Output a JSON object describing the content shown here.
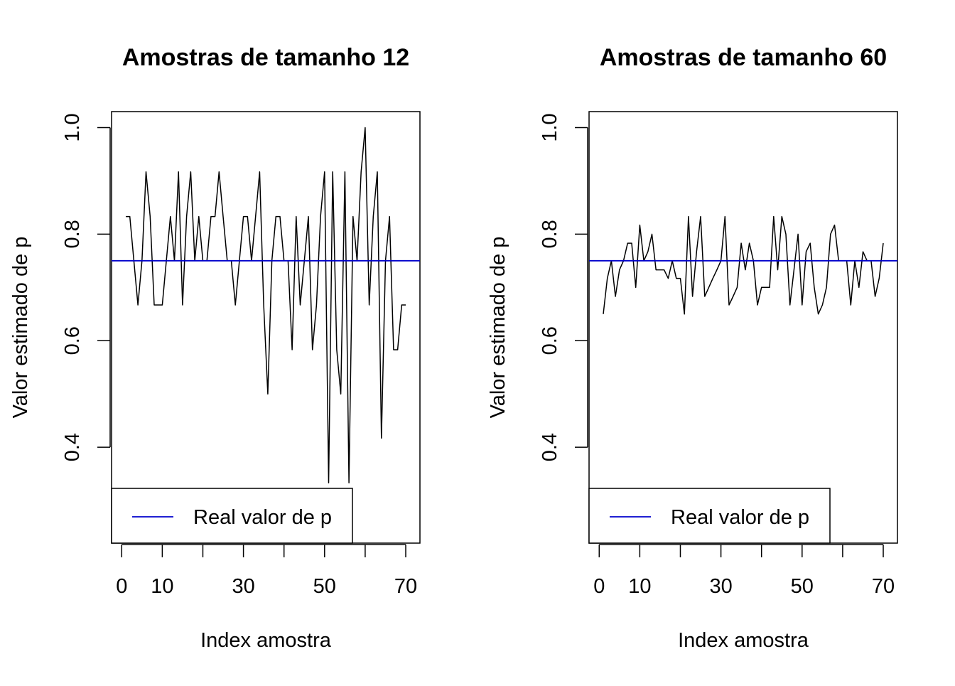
{
  "chart_data": [
    {
      "type": "line",
      "title": "Amostras de tamanho 12",
      "xlabel": "Index amostra",
      "ylabel": "Valor estimado de p",
      "xlim": [
        -2.5,
        73.5
      ],
      "ylim": [
        0.22,
        1.03
      ],
      "xticks": [
        0,
        10,
        20,
        30,
        40,
        50,
        60,
        70
      ],
      "xtick_labels": [
        "0",
        "10",
        "",
        "30",
        "",
        "50",
        "",
        "70"
      ],
      "yticks": [
        0.4,
        0.6,
        0.8,
        1.0
      ],
      "ytick_labels": [
        "0.4",
        "0.6",
        "0.8",
        "1.0"
      ],
      "grid": false,
      "legend_position": "bottom-left",
      "series": [
        {
          "color": "#000000",
          "x": [
            1,
            2,
            3,
            4,
            5,
            6,
            7,
            8,
            9,
            10,
            11,
            12,
            13,
            14,
            15,
            16,
            17,
            18,
            19,
            20,
            21,
            22,
            23,
            24,
            25,
            26,
            27,
            28,
            29,
            30,
            31,
            32,
            33,
            34,
            35,
            36,
            37,
            38,
            39,
            40,
            41,
            42,
            43,
            44,
            45,
            46,
            47,
            48,
            49,
            50,
            51,
            52,
            53,
            54,
            55,
            56,
            57,
            58,
            59,
            60,
            61,
            62,
            63,
            64,
            65,
            66,
            67,
            68,
            69,
            70
          ],
          "values": [
            0.833,
            0.833,
            0.75,
            0.667,
            0.75,
            0.917,
            0.833,
            0.667,
            0.667,
            0.667,
            0.75,
            0.833,
            0.75,
            0.917,
            0.667,
            0.833,
            0.917,
            0.75,
            0.833,
            0.75,
            0.75,
            0.833,
            0.833,
            0.917,
            0.833,
            0.75,
            0.75,
            0.667,
            0.75,
            0.833,
            0.833,
            0.75,
            0.833,
            0.917,
            0.667,
            0.5,
            0.75,
            0.833,
            0.833,
            0.75,
            0.75,
            0.583,
            0.833,
            0.667,
            0.75,
            0.833,
            0.583,
            0.667,
            0.833,
            0.917,
            0.333,
            0.917,
            0.583,
            0.5,
            0.917,
            0.333,
            0.833,
            0.75,
            0.917,
            1.0,
            0.667,
            0.833,
            0.917,
            0.417,
            0.75,
            0.833,
            0.583,
            0.583,
            0.667,
            0.667
          ]
        },
        {
          "name": "Real valor de p",
          "color": "#0000cc",
          "hline": 0.75
        }
      ]
    },
    {
      "type": "line",
      "title": "Amostras de tamanho 60",
      "xlabel": "Index amostra",
      "ylabel": "Valor estimado de p",
      "xlim": [
        -2.5,
        73.5
      ],
      "ylim": [
        0.22,
        1.03
      ],
      "xticks": [
        0,
        10,
        20,
        30,
        40,
        50,
        60,
        70
      ],
      "xtick_labels": [
        "0",
        "10",
        "",
        "30",
        "",
        "50",
        "",
        "70"
      ],
      "yticks": [
        0.4,
        0.6,
        0.8,
        1.0
      ],
      "ytick_labels": [
        "0.4",
        "0.6",
        "0.8",
        "1.0"
      ],
      "grid": false,
      "legend_position": "bottom-left",
      "series": [
        {
          "color": "#000000",
          "x": [
            1,
            2,
            3,
            4,
            5,
            6,
            7,
            8,
            9,
            10,
            11,
            12,
            13,
            14,
            15,
            16,
            17,
            18,
            19,
            20,
            21,
            22,
            23,
            24,
            25,
            26,
            27,
            28,
            29,
            30,
            31,
            32,
            33,
            34,
            35,
            36,
            37,
            38,
            39,
            40,
            41,
            42,
            43,
            44,
            45,
            46,
            47,
            48,
            49,
            50,
            51,
            52,
            53,
            54,
            55,
            56,
            57,
            58,
            59,
            60,
            61,
            62,
            63,
            64,
            65,
            66,
            67,
            68,
            69,
            70
          ],
          "values": [
            0.65,
            0.717,
            0.75,
            0.683,
            0.733,
            0.75,
            0.783,
            0.783,
            0.7,
            0.817,
            0.75,
            0.767,
            0.8,
            0.733,
            0.733,
            0.733,
            0.717,
            0.75,
            0.717,
            0.717,
            0.65,
            0.833,
            0.683,
            0.767,
            0.833,
            0.683,
            0.7,
            0.717,
            0.733,
            0.75,
            0.833,
            0.667,
            0.683,
            0.7,
            0.783,
            0.733,
            0.783,
            0.75,
            0.667,
            0.7,
            0.7,
            0.7,
            0.833,
            0.733,
            0.833,
            0.8,
            0.667,
            0.733,
            0.8,
            0.667,
            0.767,
            0.783,
            0.7,
            0.65,
            0.667,
            0.7,
            0.8,
            0.817,
            0.75,
            0.75,
            0.75,
            0.667,
            0.75,
            0.7,
            0.767,
            0.75,
            0.75,
            0.683,
            0.717,
            0.783
          ]
        },
        {
          "name": "Real valor de p",
          "color": "#0000cc",
          "hline": 0.75
        }
      ]
    }
  ]
}
